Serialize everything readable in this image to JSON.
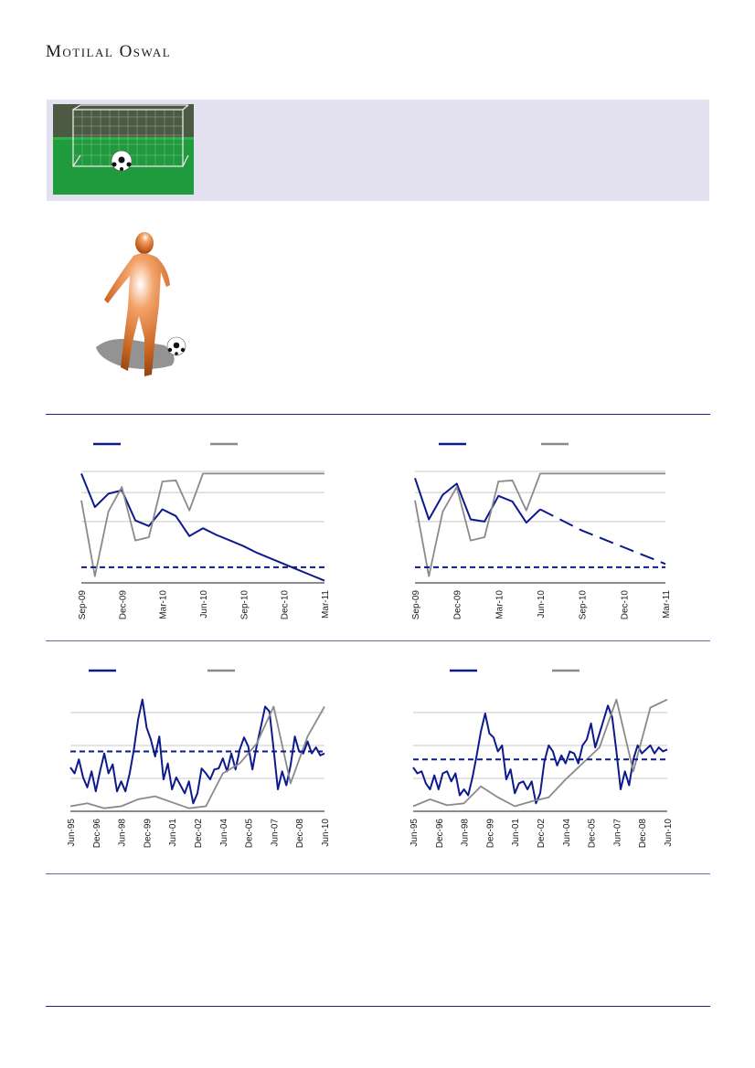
{
  "header": {
    "brand": "Motilal Oswal"
  },
  "colors": {
    "navy": "#0d1a8c",
    "gray": "#8a8a8a",
    "grid": "#c8c8c8",
    "axis": "#1a1a1a",
    "band": "#e3e1f0"
  },
  "images": {
    "banner_image": "soccer-goal-with-ball",
    "player_image": "soccer-player-kicking-ball"
  },
  "chart_data": [
    {
      "type": "line",
      "x_tick_labels": [
        "Sep-09",
        "Dec-09",
        "Mar-10",
        "Jun-10",
        "Sep-10",
        "Dec-10",
        "Mar-11"
      ],
      "x_range": [
        0,
        18
      ],
      "ylim": [
        0,
        100
      ],
      "grid": true,
      "legend": "top-left",
      "series": [
        {
          "style": "solid",
          "color": "#0d1a8c",
          "x": [
            0,
            1,
            2,
            3,
            4,
            5,
            6,
            7,
            8,
            9,
            10,
            11,
            12,
            13,
            14,
            15,
            16,
            17,
            18
          ],
          "values": [
            98,
            68,
            80,
            83,
            56,
            51,
            66,
            60,
            42,
            49,
            43,
            38,
            33,
            27,
            22,
            17,
            12,
            7,
            2
          ]
        },
        {
          "style": "solid",
          "color": "#8a8a8a",
          "x": [
            0,
            1,
            2,
            3,
            4,
            5,
            6,
            7,
            8,
            9,
            10,
            11,
            12,
            13,
            14,
            15,
            16,
            17,
            18
          ],
          "values": [
            74,
            6,
            64,
            86,
            38,
            41,
            91,
            92,
            65,
            98,
            98,
            98,
            98,
            98,
            98,
            98,
            98,
            98,
            98
          ]
        },
        {
          "style": "dashed",
          "color": "#0d1a8c",
          "x": [
            0,
            18
          ],
          "values": [
            14,
            14
          ]
        }
      ]
    },
    {
      "type": "line",
      "x_tick_labels": [
        "Sep-09",
        "Dec-09",
        "Mar-10",
        "Jun-10",
        "Sep-10",
        "Dec-10",
        "Mar-11"
      ],
      "x_range": [
        0,
        18
      ],
      "ylim": [
        0,
        100
      ],
      "grid": true,
      "legend": "top-left",
      "series": [
        {
          "style": "solid",
          "color": "#0d1a8c",
          "x": [
            0,
            1,
            2,
            3,
            4,
            5,
            6,
            7,
            8,
            9
          ],
          "values": [
            94,
            57,
            79,
            89,
            57,
            55,
            78,
            73,
            54,
            66
          ]
        },
        {
          "style": "dashed",
          "color": "#0d1a8c",
          "x": [
            9,
            12,
            15,
            18
          ],
          "values": [
            66,
            47,
            32,
            17
          ]
        },
        {
          "style": "solid",
          "color": "#8a8a8a",
          "x": [
            0,
            1,
            2,
            3,
            4,
            5,
            6,
            7,
            8,
            9,
            10,
            11,
            12,
            13,
            14,
            15,
            16,
            17,
            18
          ],
          "values": [
            74,
            6,
            64,
            86,
            38,
            41,
            91,
            92,
            65,
            98,
            98,
            98,
            98,
            98,
            98,
            98,
            98,
            98,
            98
          ]
        },
        {
          "style": "dashed",
          "color": "#0d1a8c",
          "x": [
            0,
            18
          ],
          "values": [
            14,
            14
          ]
        }
      ]
    },
    {
      "type": "line",
      "x_tick_labels": [
        "Jun-95",
        "Dec-96",
        "Jun-98",
        "Dec-99",
        "Jun-01",
        "Dec-02",
        "Jun-04",
        "Dec-05",
        "Jun-07",
        "Dec-08",
        "Jun-10"
      ],
      "x_range": [
        0,
        60
      ],
      "ylim": [
        0,
        120
      ],
      "grid": true,
      "legend": "top-left",
      "series": [
        {
          "style": "solid",
          "color": "#0d1a8c",
          "x": [
            0,
            1,
            2,
            3,
            4,
            5,
            6,
            7,
            8,
            9,
            10,
            11,
            12,
            13,
            14,
            15,
            16,
            17,
            18,
            19,
            20,
            21,
            22,
            23,
            24,
            25,
            26,
            27,
            28,
            29,
            30,
            31,
            32,
            33,
            34,
            35,
            36,
            37,
            38,
            39,
            40,
            41,
            42,
            43,
            44,
            45,
            46,
            47,
            48,
            49,
            50,
            51,
            52,
            53,
            54,
            55,
            56,
            57,
            58,
            59,
            60
          ],
          "values": [
            44,
            38,
            52,
            34,
            24,
            40,
            20,
            40,
            58,
            38,
            47,
            20,
            30,
            20,
            38,
            62,
            92,
            112,
            84,
            72,
            55,
            75,
            32,
            48,
            22,
            34,
            26,
            18,
            30,
            8,
            18,
            43,
            38,
            32,
            42,
            43,
            53,
            40,
            58,
            42,
            62,
            74,
            65,
            42,
            66,
            85,
            105,
            100,
            62,
            22,
            40,
            26,
            46,
            75,
            60,
            58,
            70,
            58,
            64,
            56,
            58
          ]
        },
        {
          "style": "solid",
          "color": "#8a8a8a",
          "x": [
            0,
            4,
            8,
            12,
            16,
            20,
            24,
            28,
            32,
            36,
            40,
            44,
            48,
            52,
            56,
            60
          ],
          "values": [
            5,
            8,
            3,
            5,
            12,
            15,
            9,
            3,
            5,
            38,
            48,
            68,
            105,
            28,
            75,
            105
          ]
        },
        {
          "style": "dashed",
          "color": "#0d1a8c",
          "x": [
            0,
            60
          ],
          "values": [
            60,
            60
          ]
        }
      ]
    },
    {
      "type": "line",
      "x_tick_labels": [
        "Jun-95",
        "Dec-96",
        "Jun-98",
        "Dec-99",
        "Jun-01",
        "Dec-02",
        "Jun-04",
        "Dec-05",
        "Jun-07",
        "Dec-08",
        "Jun-10"
      ],
      "x_range": [
        0,
        60
      ],
      "ylim": [
        0,
        120
      ],
      "grid": true,
      "legend": "top-left",
      "series": [
        {
          "style": "solid",
          "color": "#0d1a8c",
          "x": [
            0,
            1,
            2,
            3,
            4,
            5,
            6,
            7,
            8,
            9,
            10,
            11,
            12,
            13,
            14,
            15,
            16,
            17,
            18,
            19,
            20,
            21,
            22,
            23,
            24,
            25,
            26,
            27,
            28,
            29,
            30,
            31,
            32,
            33,
            34,
            35,
            36,
            37,
            38,
            39,
            40,
            41,
            42,
            43,
            44,
            45,
            46,
            47,
            48,
            49,
            50,
            51,
            52,
            53,
            54,
            55,
            56,
            57,
            58,
            59,
            60
          ],
          "values": [
            44,
            38,
            40,
            28,
            22,
            36,
            22,
            38,
            40,
            30,
            38,
            16,
            22,
            16,
            34,
            56,
            80,
            98,
            78,
            74,
            60,
            66,
            32,
            42,
            18,
            28,
            30,
            22,
            30,
            8,
            18,
            50,
            66,
            60,
            46,
            56,
            48,
            60,
            58,
            48,
            66,
            72,
            88,
            64,
            78,
            92,
            106,
            94,
            60,
            22,
            40,
            26,
            52,
            66,
            58,
            62,
            66,
            58,
            64,
            60,
            62
          ]
        },
        {
          "style": "solid",
          "color": "#8a8a8a",
          "x": [
            0,
            4,
            8,
            12,
            16,
            20,
            24,
            28,
            32,
            36,
            40,
            44,
            48,
            52,
            56,
            60
          ],
          "values": [
            5,
            12,
            6,
            8,
            25,
            14,
            5,
            10,
            14,
            32,
            48,
            64,
            112,
            40,
            104,
            112
          ]
        },
        {
          "style": "dashed",
          "color": "#0d1a8c",
          "x": [
            0,
            60
          ],
          "values": [
            52,
            52
          ]
        }
      ]
    }
  ]
}
